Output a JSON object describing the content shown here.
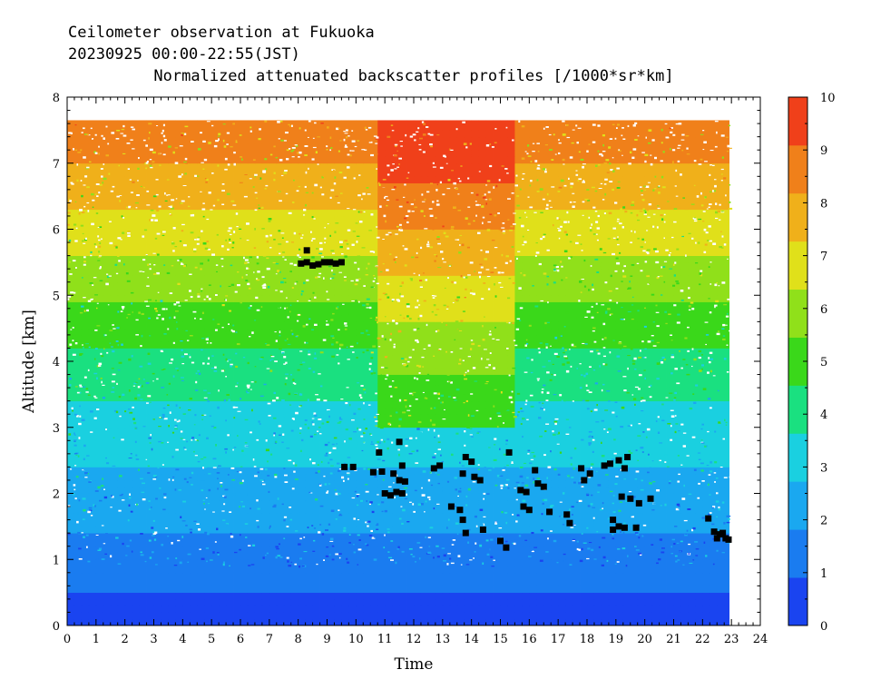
{
  "header": {
    "line1": "Ceilometer observation at Fukuoka",
    "line2": "20230925  00:00-22:55(JST)",
    "line3": "Normalized attenuated backscatter profiles [/1000*sr*km]"
  },
  "chart_data": {
    "type": "heatmap",
    "xlabel": "Time",
    "ylabel": "Altitude [km]",
    "xlim": [
      0,
      24
    ],
    "ylim": [
      0,
      8
    ],
    "x_ticks": [
      "0",
      "1",
      "2",
      "3",
      "4",
      "5",
      "6",
      "7",
      "8",
      "9",
      "10",
      "11",
      "12",
      "13",
      "14",
      "15",
      "16",
      "17",
      "18",
      "19",
      "20",
      "21",
      "22",
      "23",
      "24"
    ],
    "y_ticks": [
      "0",
      "1",
      "2",
      "3",
      "4",
      "5",
      "6",
      "7",
      "8"
    ],
    "data_extent": {
      "time_end": 22.92,
      "altitude_top": 7.65
    },
    "colorbar": {
      "min": 0,
      "max": 10,
      "ticks": [
        "0",
        "1",
        "2",
        "3",
        "4",
        "5",
        "6",
        "7",
        "8",
        "9",
        "10"
      ],
      "colors": [
        "#1a44f0",
        "#1a7cf0",
        "#1aa8f0",
        "#1ad0e0",
        "#1ae080",
        "#3ad81a",
        "#90e01a",
        "#e0e01a",
        "#f0b01a",
        "#f0801a",
        "#f0401a"
      ]
    },
    "cloud_base_color": "#000000",
    "cloud_base_points": [
      {
        "t": 8.1,
        "alt": 5.48
      },
      {
        "t": 8.3,
        "alt": 5.5
      },
      {
        "t": 8.5,
        "alt": 5.45
      },
      {
        "t": 8.7,
        "alt": 5.47
      },
      {
        "t": 8.9,
        "alt": 5.5
      },
      {
        "t": 9.1,
        "alt": 5.5
      },
      {
        "t": 9.3,
        "alt": 5.48
      },
      {
        "t": 9.5,
        "alt": 5.5
      },
      {
        "t": 8.3,
        "alt": 5.68
      },
      {
        "t": 9.6,
        "alt": 2.4
      },
      {
        "t": 9.9,
        "alt": 2.4
      },
      {
        "t": 10.6,
        "alt": 2.32
      },
      {
        "t": 10.9,
        "alt": 2.33
      },
      {
        "t": 10.8,
        "alt": 2.62
      },
      {
        "t": 11.0,
        "alt": 2.0
      },
      {
        "t": 11.2,
        "alt": 1.97
      },
      {
        "t": 11.4,
        "alt": 2.02
      },
      {
        "t": 11.6,
        "alt": 2.0
      },
      {
        "t": 11.3,
        "alt": 2.3
      },
      {
        "t": 11.5,
        "alt": 2.2
      },
      {
        "t": 11.7,
        "alt": 2.18
      },
      {
        "t": 11.5,
        "alt": 2.78
      },
      {
        "t": 11.6,
        "alt": 2.42
      },
      {
        "t": 12.7,
        "alt": 2.38
      },
      {
        "t": 12.9,
        "alt": 2.42
      },
      {
        "t": 13.3,
        "alt": 1.8
      },
      {
        "t": 13.6,
        "alt": 1.75
      },
      {
        "t": 13.7,
        "alt": 2.3
      },
      {
        "t": 13.8,
        "alt": 2.55
      },
      {
        "t": 14.0,
        "alt": 2.48
      },
      {
        "t": 14.1,
        "alt": 2.25
      },
      {
        "t": 14.3,
        "alt": 2.2
      },
      {
        "t": 13.8,
        "alt": 1.4
      },
      {
        "t": 13.7,
        "alt": 1.6
      },
      {
        "t": 14.4,
        "alt": 1.45
      },
      {
        "t": 15.0,
        "alt": 1.28
      },
      {
        "t": 15.2,
        "alt": 1.18
      },
      {
        "t": 15.3,
        "alt": 2.62
      },
      {
        "t": 15.7,
        "alt": 2.05
      },
      {
        "t": 15.9,
        "alt": 2.02
      },
      {
        "t": 15.8,
        "alt": 1.8
      },
      {
        "t": 16.0,
        "alt": 1.75
      },
      {
        "t": 16.2,
        "alt": 2.35
      },
      {
        "t": 16.3,
        "alt": 2.15
      },
      {
        "t": 16.5,
        "alt": 2.1
      },
      {
        "t": 16.7,
        "alt": 1.72
      },
      {
        "t": 17.3,
        "alt": 1.68
      },
      {
        "t": 17.4,
        "alt": 1.55
      },
      {
        "t": 17.8,
        "alt": 2.38
      },
      {
        "t": 17.9,
        "alt": 2.2
      },
      {
        "t": 18.1,
        "alt": 2.3
      },
      {
        "t": 18.6,
        "alt": 2.42
      },
      {
        "t": 18.8,
        "alt": 2.45
      },
      {
        "t": 18.9,
        "alt": 1.6
      },
      {
        "t": 18.9,
        "alt": 1.45
      },
      {
        "t": 19.1,
        "alt": 1.5
      },
      {
        "t": 19.3,
        "alt": 1.48
      },
      {
        "t": 19.1,
        "alt": 2.5
      },
      {
        "t": 19.3,
        "alt": 2.38
      },
      {
        "t": 19.4,
        "alt": 2.55
      },
      {
        "t": 19.2,
        "alt": 1.95
      },
      {
        "t": 19.5,
        "alt": 1.92
      },
      {
        "t": 19.7,
        "alt": 1.48
      },
      {
        "t": 19.8,
        "alt": 1.85
      },
      {
        "t": 20.2,
        "alt": 1.92
      },
      {
        "t": 22.2,
        "alt": 1.62
      },
      {
        "t": 22.4,
        "alt": 1.42
      },
      {
        "t": 22.5,
        "alt": 1.32
      },
      {
        "t": 22.6,
        "alt": 1.38
      },
      {
        "t": 22.7,
        "alt": 1.4
      },
      {
        "t": 22.8,
        "alt": 1.32
      },
      {
        "t": 22.9,
        "alt": 1.3
      }
    ]
  }
}
